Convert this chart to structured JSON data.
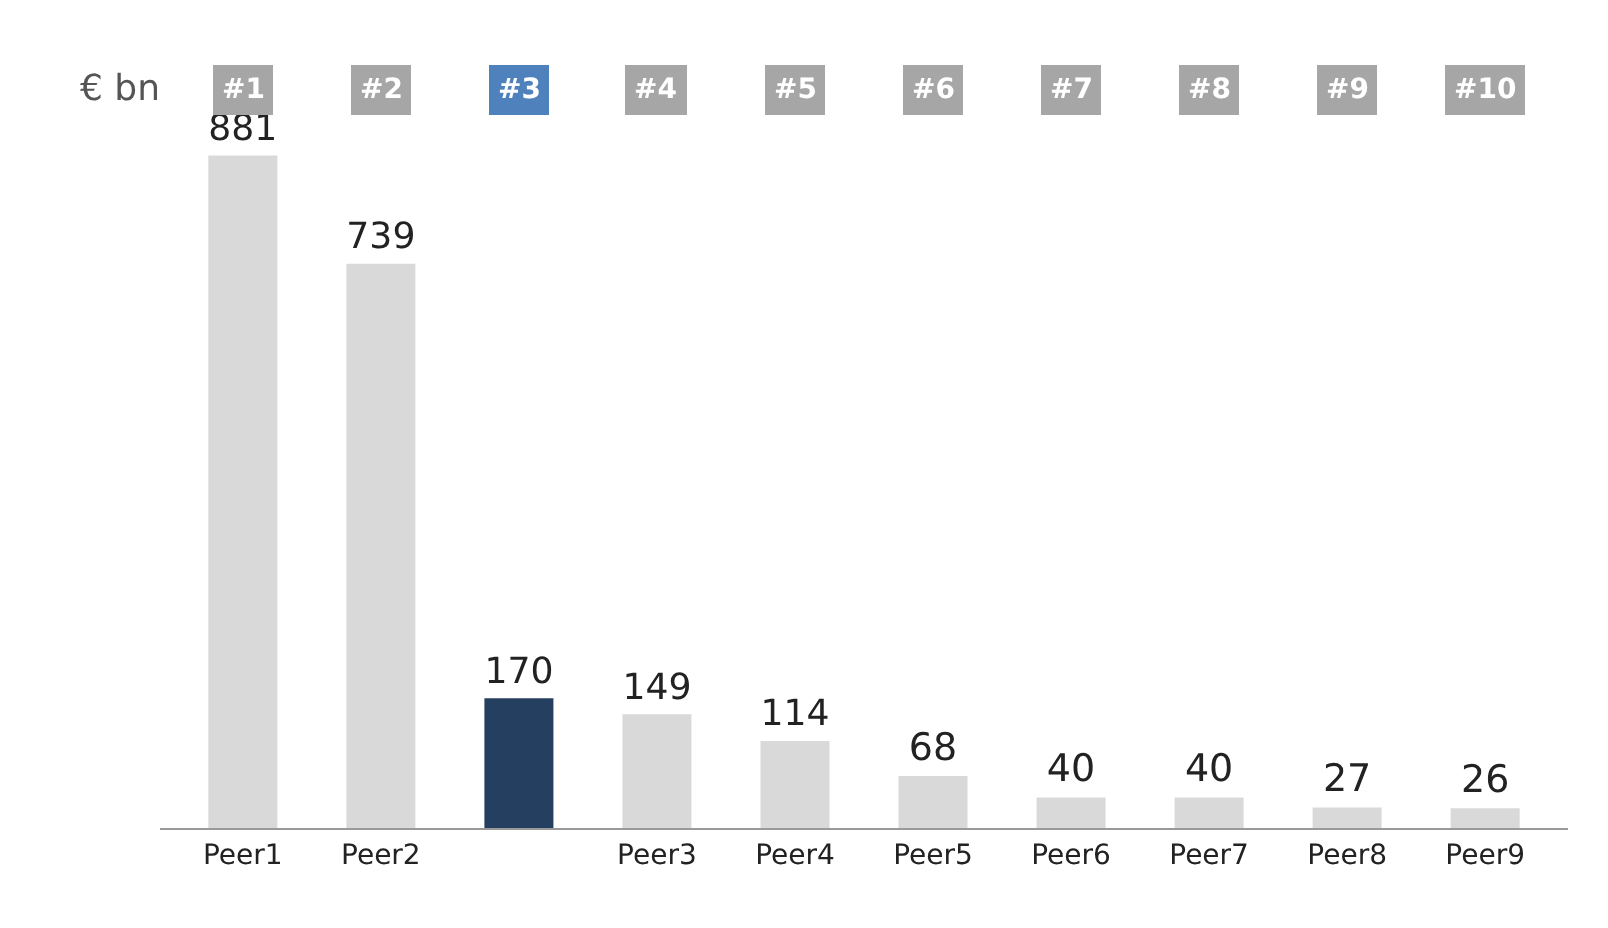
{
  "chart_data": {
    "type": "bar",
    "ylabel": "€ bn",
    "categories": [
      "Peer1",
      "Peer2",
      null,
      "Peer3",
      "Peer4",
      "Peer5",
      "Peer6",
      "Peer7",
      "Peer8",
      "Peer9"
    ],
    "values": [
      881,
      739,
      170,
      149,
      114,
      68,
      40,
      40,
      27,
      26
    ],
    "colors": [
      "#d9d9d9",
      "#d9d9d9",
      "#243f60",
      "#d9d9d9",
      "#d9d9d9",
      "#d9d9d9",
      "#d9d9d9",
      "#d9d9d9",
      "#d9d9d9",
      "#d9d9d9"
    ],
    "data_labels": true,
    "tick_labels": "x",
    "grid": false,
    "legend": false,
    "annotations": [
      "#1",
      "#2",
      "#3",
      "#4",
      "#5",
      "#6",
      "#7",
      "#8",
      "#9",
      "#10"
    ]
  }
}
